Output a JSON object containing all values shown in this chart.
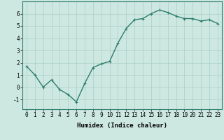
{
  "x": [
    0,
    1,
    2,
    3,
    4,
    5,
    6,
    7,
    8,
    9,
    10,
    11,
    12,
    13,
    14,
    15,
    16,
    17,
    18,
    19,
    20,
    21,
    22,
    23
  ],
  "y": [
    1.7,
    1.0,
    0.0,
    0.6,
    -0.2,
    -0.6,
    -1.2,
    0.3,
    1.6,
    1.9,
    2.1,
    3.6,
    4.8,
    5.5,
    5.6,
    6.0,
    6.3,
    6.1,
    5.8,
    5.6,
    5.6,
    5.4,
    5.5,
    5.2
  ],
  "line_color": "#2e7d6e",
  "marker": "+",
  "marker_size": 3,
  "xlabel": "Humidex (Indice chaleur)",
  "ylim": [
    -1.8,
    7.0
  ],
  "xlim": [
    -0.5,
    23.5
  ],
  "yticks": [
    -1,
    0,
    1,
    2,
    3,
    4,
    5,
    6
  ],
  "xticks": [
    0,
    1,
    2,
    3,
    4,
    5,
    6,
    7,
    8,
    9,
    10,
    11,
    12,
    13,
    14,
    15,
    16,
    17,
    18,
    19,
    20,
    21,
    22,
    23
  ],
  "background_color": "#cde8e0",
  "grid_color": "#aacfc5",
  "tick_fontsize": 5.5,
  "xlabel_fontsize": 6.5,
  "linewidth": 1.0
}
